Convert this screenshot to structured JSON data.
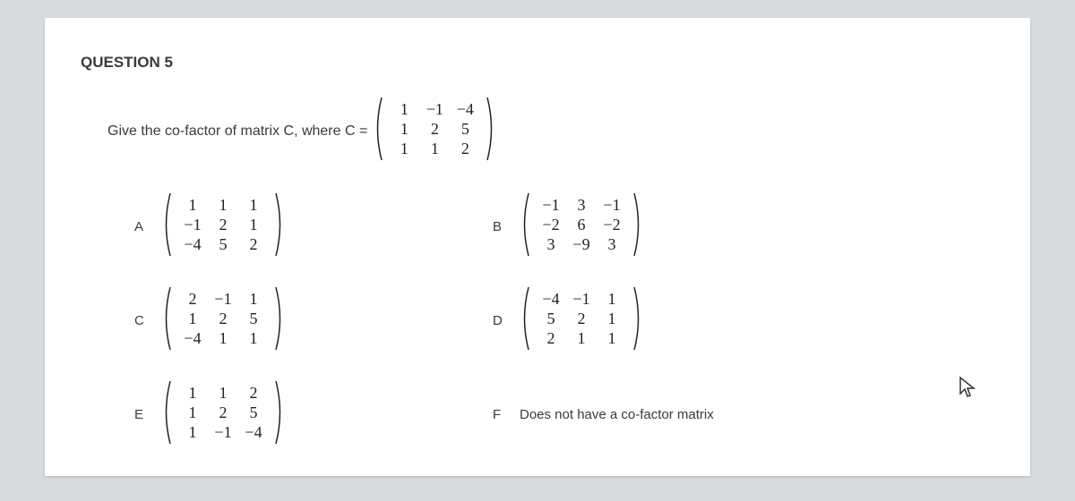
{
  "question": {
    "title": "QUESTION 5",
    "prompt": "Give the co-factor of matrix C, where C =",
    "promptMatrix": {
      "rows": [
        [
          "1",
          "−1",
          "−4"
        ],
        [
          "1",
          "2",
          "5"
        ],
        [
          "1",
          "1",
          "2"
        ]
      ]
    }
  },
  "options": {
    "A": {
      "rows": [
        [
          "1",
          "1",
          "1"
        ],
        [
          "−1",
          "2",
          "1"
        ],
        [
          "−4",
          "5",
          "2"
        ]
      ]
    },
    "B": {
      "rows": [
        [
          "−1",
          "3",
          "−1"
        ],
        [
          "−2",
          "6",
          "−2"
        ],
        [
          "3",
          "−9",
          "3"
        ]
      ]
    },
    "C": {
      "rows": [
        [
          "2",
          "−1",
          "1"
        ],
        [
          "1",
          "2",
          "5"
        ],
        [
          "−4",
          "1",
          "1"
        ]
      ]
    },
    "D": {
      "rows": [
        [
          "−4",
          "−1",
          "1"
        ],
        [
          "5",
          "2",
          "1"
        ],
        [
          "2",
          "1",
          "1"
        ]
      ]
    },
    "E": {
      "rows": [
        [
          "1",
          "1",
          "2"
        ],
        [
          "1",
          "2",
          "5"
        ],
        [
          "1",
          "−1",
          "−4"
        ]
      ]
    },
    "F": {
      "text": "Does not have a co-factor matrix"
    }
  },
  "labels": {
    "A": "A",
    "B": "B",
    "C": "C",
    "D": "D",
    "E": "E",
    "F": "F"
  },
  "style": {
    "background": "#d8dbdd",
    "sheet": "#ffffff",
    "textColor": "#3a3a3a",
    "matrixFontSize": 18
  }
}
